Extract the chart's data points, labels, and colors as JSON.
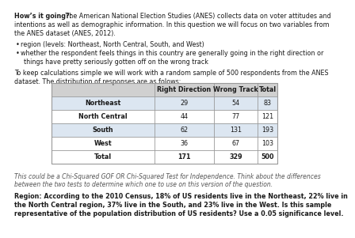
{
  "title_bold": "How’s it going?:",
  "title_rest": " The American National Election Studies (ANES) collects data on voter attitudes and",
  "line2": "intentions as well as demographic information. In this question we will focus on two variables from",
  "line3": "the ANES dataset (ANES, 2012).",
  "bullet1": "region (levels: Northeast, North Central, South, and West)",
  "bullet2_line1": "whether the respondent feels things in this country are generally going in the right direction or",
  "bullet2_line2": "things have pretty seriously gotten off on the wrong track",
  "para1": "To keep calculations simple we will work with a random sample of 500 respondents from the ANES",
  "para2": "dataset. The distribution of responses are as folows:",
  "table_headers": [
    "",
    "Right Direction",
    "Wrong Track",
    "Total"
  ],
  "table_rows": [
    [
      "Northeast",
      "29",
      "54",
      "83"
    ],
    [
      "North Central",
      "44",
      "77",
      "121"
    ],
    [
      "South",
      "62",
      "131",
      "193"
    ],
    [
      "West",
      "36",
      "67",
      "103"
    ],
    [
      "Total",
      "171",
      "329",
      "500"
    ]
  ],
  "italic1": "This could be a Chi-Squared GOF OR Chi-Squared Test for Independence. Think about the differences",
  "italic2": "between the two tests to determine which one to use on this version of the question.",
  "bold1": "Region: According to the 2010 Census, 18% of US residents live in the Northeast, 22% live in",
  "bold2": "the North Central region, 37% live in the South, and 23% live in the West. Is this sample",
  "bold3": "representative of the population distribution of US residents? Use a 0.05 significance level.",
  "bg_color": "#ffffff",
  "row_colors": [
    "#dce6f1",
    "#ffffff",
    "#dce6f1",
    "#ffffff",
    "#ffffff"
  ],
  "header_bg": "#d0d0d0",
  "border_color": "#999999",
  "text_dark": "#1a1a1a",
  "text_gray": "#555555"
}
